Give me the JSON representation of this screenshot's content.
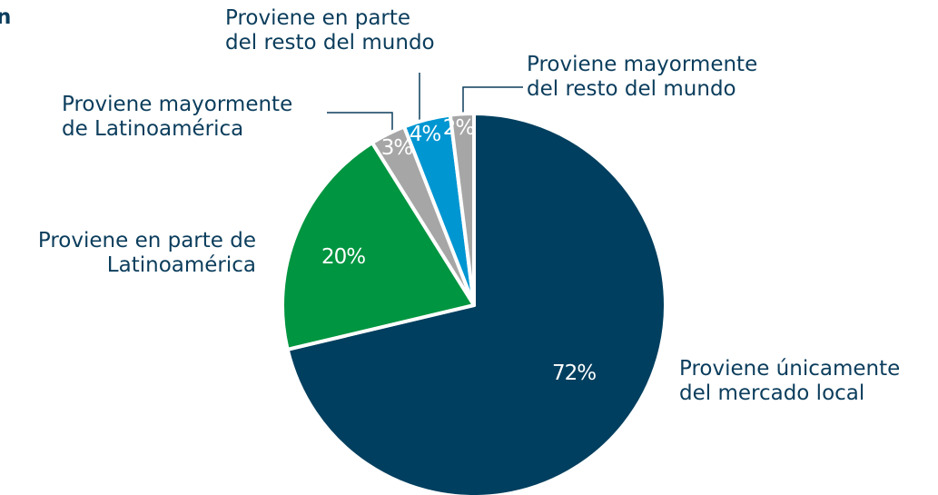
{
  "chart_data": {
    "type": "pie",
    "title": "n",
    "categories": [
      [
        "Proviene únicamente",
        "del mercado local"
      ],
      [
        "Proviene en parte de",
        "Latinoamérica"
      ],
      [
        "Proviene mayormente",
        "de Latinoamérica"
      ],
      [
        "Proviene en parte",
        "del resto del mundo"
      ],
      [
        "Proviene mayormente",
        "del resto del mundo"
      ]
    ],
    "values": [
      72,
      20,
      3,
      4,
      2
    ],
    "value_labels": [
      "72%",
      "20%",
      "3%",
      "4%",
      "2%"
    ],
    "colors": [
      "#003f5f",
      "#009540",
      "#a6a6a6",
      "#0096d2",
      "#a6a6a6"
    ]
  }
}
